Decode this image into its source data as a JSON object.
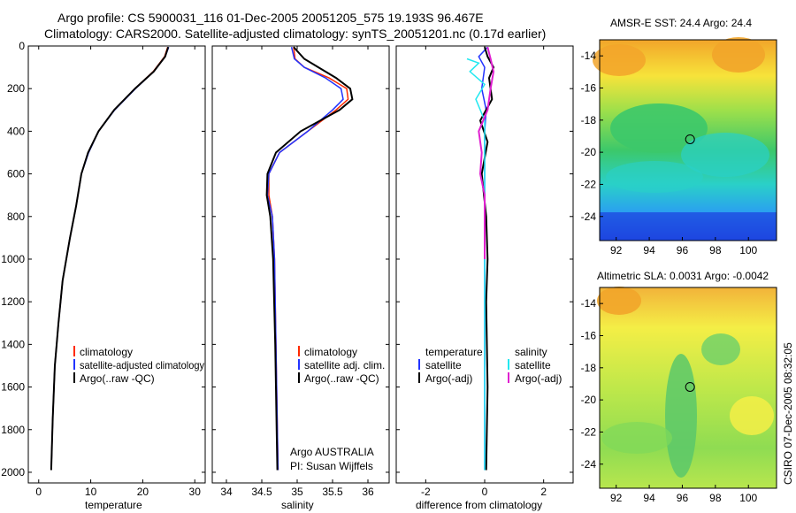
{
  "header": {
    "line1": "Argo profile: CS 5900031_116 01-Dec-2005 20051205_575 19.193S 96.467E",
    "line2": "Climatology: CARS2000. Satellite-adjusted climatology: synTS_20051201.nc (0.17d earlier)"
  },
  "depth_axis": {
    "ticks": [
      0,
      200,
      400,
      600,
      800,
      1000,
      1200,
      1400,
      1600,
      1800,
      2000
    ],
    "range": [
      0,
      2050
    ]
  },
  "colors": {
    "climatology": "#ff2a00",
    "satellite": "#2233ff",
    "argo": "#000000",
    "sal_satellite": "#22e8f0",
    "sal_argo": "#e020d0"
  },
  "chart_data": [
    {
      "type": "line",
      "id": "temperature",
      "xlabel": "temperature",
      "xlim": [
        -2,
        32
      ],
      "xticks": [
        0,
        10,
        20,
        30
      ],
      "ylim": [
        0,
        2050
      ],
      "series": [
        {
          "name": "climatology",
          "x": [
            24.8,
            24.2,
            22.0,
            18.5,
            14.5,
            11.5,
            9.5,
            8.2,
            7.2,
            6.0,
            4.6,
            3.8,
            3.1,
            2.7,
            2.4
          ],
          "y": [
            5,
            50,
            120,
            200,
            300,
            400,
            500,
            600,
            750,
            900,
            1100,
            1300,
            1500,
            1750,
            1990
          ]
        },
        {
          "name": "satellite-adjusted climatology",
          "x": [
            25.0,
            24.3,
            22.1,
            18.6,
            14.6,
            11.5,
            9.6,
            8.2,
            7.2,
            6.0,
            4.6,
            3.8,
            3.1,
            2.7,
            2.4
          ],
          "y": [
            5,
            50,
            120,
            200,
            300,
            400,
            500,
            600,
            750,
            900,
            1100,
            1300,
            1500,
            1750,
            1990
          ]
        },
        {
          "name": "Argo(..raw -QC)",
          "x": [
            24.9,
            24.3,
            22.1,
            18.5,
            14.5,
            11.5,
            9.5,
            8.2,
            7.2,
            6.0,
            4.6,
            3.8,
            3.1,
            2.7,
            2.4
          ],
          "y": [
            5,
            50,
            120,
            200,
            300,
            400,
            500,
            600,
            750,
            900,
            1100,
            1300,
            1500,
            1750,
            1990
          ]
        }
      ],
      "legend": [
        "climatology",
        "satellite-adjusted climatology",
        "Argo(..raw -QC)"
      ]
    },
    {
      "type": "line",
      "id": "salinity",
      "xlabel": "salinity",
      "xlim": [
        33.8,
        36.3
      ],
      "xticks": [
        34,
        34.5,
        35,
        35.5,
        36
      ],
      "ylim": [
        0,
        2050
      ],
      "series": [
        {
          "name": "climatology",
          "x": [
            34.95,
            34.97,
            35.1,
            35.45,
            35.7,
            35.72,
            35.55,
            35.15,
            34.75,
            34.6,
            34.6,
            34.65,
            34.68,
            34.7,
            34.72,
            34.73
          ],
          "y": [
            5,
            60,
            100,
            150,
            200,
            250,
            300,
            400,
            500,
            600,
            700,
            800,
            1000,
            1400,
            1800,
            1990
          ]
        },
        {
          "name": "satellite adj. clim.",
          "x": [
            34.92,
            34.96,
            35.1,
            35.4,
            35.62,
            35.65,
            35.5,
            35.15,
            34.75,
            34.6,
            34.58,
            34.65,
            34.68,
            34.7,
            34.72,
            34.73
          ],
          "y": [
            5,
            60,
            100,
            150,
            200,
            250,
            300,
            400,
            500,
            600,
            700,
            800,
            1000,
            1400,
            1800,
            1990
          ]
        },
        {
          "name": "Argo(..raw -QC)",
          "x": [
            34.95,
            35.1,
            35.3,
            35.55,
            35.75,
            35.78,
            35.6,
            35.05,
            34.7,
            34.58,
            34.57,
            34.62,
            34.66,
            34.69,
            34.71,
            34.72
          ],
          "y": [
            5,
            60,
            100,
            150,
            200,
            250,
            300,
            400,
            500,
            600,
            700,
            800,
            1000,
            1400,
            1800,
            1990
          ]
        }
      ],
      "legend": [
        "climatology",
        "satellite adj. clim.",
        "Argo(..raw -QC)"
      ],
      "annotation": [
        "Argo AUSTRALIA",
        "PI: Susan Wijffels"
      ]
    },
    {
      "type": "line",
      "id": "difference",
      "xlabel": "difference from climatology",
      "xlim": [
        -3,
        3
      ],
      "xticks": [
        -2,
        0,
        2
      ],
      "ylim": [
        0,
        2050
      ],
      "series": [
        {
          "name": "temperature satellite",
          "x": [
            0.1,
            -0.2,
            0.0,
            -0.1,
            0.05,
            0.0,
            0.0,
            0.0,
            0.0,
            0.0
          ],
          "y": [
            5,
            50,
            100,
            200,
            300,
            400,
            600,
            800,
            1200,
            1990
          ]
        },
        {
          "name": "temperature Argo(-adj)",
          "x": [
            0.0,
            0.1,
            0.3,
            0.15,
            0.25,
            -0.15,
            0.1,
            -0.1,
            0.05,
            0.1,
            0.05,
            0.1,
            0.05
          ],
          "y": [
            5,
            50,
            100,
            150,
            250,
            350,
            450,
            600,
            800,
            1000,
            1200,
            1600,
            1990
          ]
        },
        {
          "name": "salinity satellite",
          "x": [
            -0.6,
            -0.2,
            -0.5,
            0.0,
            -0.3,
            0.0,
            0.0,
            0.0,
            0.0,
            0.0
          ],
          "y": [
            60,
            80,
            120,
            180,
            250,
            350,
            500,
            800,
            1400,
            1990
          ]
        },
        {
          "name": "salinity Argo(-adj)",
          "x": [
            0.1,
            0.2,
            0.3,
            0.2,
            0.1,
            -0.2,
            -0.1,
            -0.15,
            0.0,
            0.0,
            0.0,
            0.0
          ],
          "y": [
            5,
            60,
            120,
            200,
            300,
            400,
            500,
            600,
            700,
            800,
            900,
            1000
          ]
        }
      ],
      "legend_temperature": {
        "header": "temperature",
        "items": [
          "satellite",
          "Argo(-adj)"
        ]
      },
      "legend_salinity": {
        "header": "salinity",
        "items": [
          "satellite",
          "Argo(-adj)"
        ]
      }
    },
    {
      "type": "heatmap",
      "id": "sst_map",
      "title": "AMSR-E SST: 24.4  Argo: 24.4",
      "xticks": [
        92,
        94,
        96,
        98,
        100
      ],
      "yticks": [
        -14,
        -16,
        -18,
        -20,
        -22,
        -24
      ],
      "xlim": [
        91,
        101.7
      ],
      "ylim": [
        -25.5,
        -13
      ],
      "marker": {
        "lon": 96.467,
        "lat": -19.193
      }
    },
    {
      "type": "heatmap",
      "id": "sla_map",
      "title": "Altimetric SLA: 0.0031  Argo: -0.0042",
      "xticks": [
        92,
        94,
        96,
        98,
        100
      ],
      "yticks": [
        -14,
        -16,
        -18,
        -20,
        -22,
        -24
      ],
      "xlim": [
        91,
        101.7
      ],
      "ylim": [
        -25.5,
        -13
      ],
      "marker": {
        "lon": 96.467,
        "lat": -19.193
      }
    }
  ],
  "side_label": "CSIRO 07-Dec-2005 08:32:05"
}
